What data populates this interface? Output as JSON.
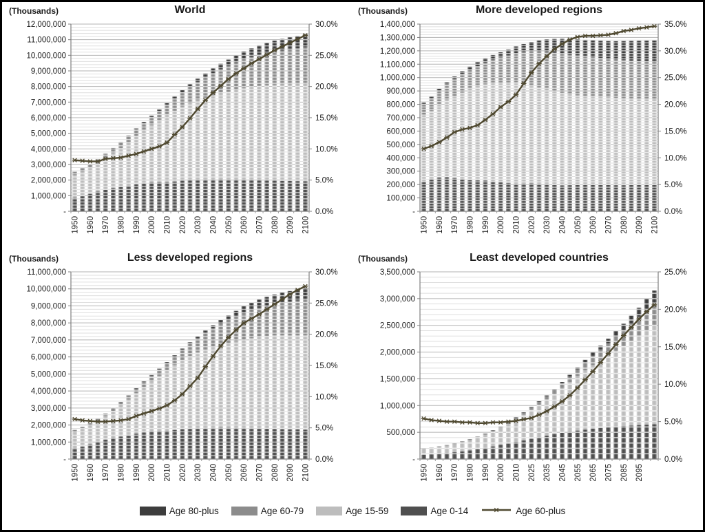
{
  "figure": {
    "units_label": "(Thousands)",
    "series_colors": {
      "age_0_14": "#4f4f4f",
      "age_15_59": "#bdbdbd",
      "age_60_79": "#8c8c8c",
      "age_80_plus": "#3d3d3d",
      "age_60_plus_line": "#4f4930"
    },
    "grid_major_color": "#b3b3b3",
    "grid_minor_color": "#dfdfdf",
    "axis_color": "#7f7f7f"
  },
  "legend": {
    "items": [
      {
        "label": "Age 80-plus",
        "swatch": "bar",
        "color_key": "age_80_plus"
      },
      {
        "label": "Age 60-79",
        "swatch": "bar",
        "color_key": "age_60_79"
      },
      {
        "label": "Age 15-59",
        "swatch": "bar",
        "color_key": "age_15_59"
      },
      {
        "label": "Age 0-14",
        "swatch": "bar",
        "color_key": "age_0_14"
      },
      {
        "label": "Age 60-plus",
        "swatch": "line",
        "color_key": "age_60_plus_line"
      }
    ]
  },
  "chart_data": [
    {
      "id": "world",
      "type": "stacked_bar_with_line",
      "title": "World",
      "units_label": "(Thousands)",
      "left_axis": {
        "max": 12000000,
        "step": 1000000,
        "zero_label": "-"
      },
      "right_axis": {
        "max": 30,
        "step": 5
      },
      "x_tick_labels": [
        "1950",
        "1960",
        "1970",
        "1980",
        "1990",
        "2000",
        "2010",
        "2020",
        "2030",
        "2040",
        "2050",
        "2060",
        "2070",
        "2080",
        "2090",
        "2100"
      ],
      "x_label_positions": [
        0,
        2,
        4,
        6,
        8,
        10,
        12,
        14,
        16,
        18,
        20,
        22,
        24,
        26,
        28,
        30
      ],
      "bars_years_step": "1950-2100 every 5 years (31 bars)",
      "series": {
        "age_0_14": [
          859000,
          965000,
          1117000,
          1262000,
          1381000,
          1490000,
          1558000,
          1621000,
          1726000,
          1784000,
          1850000,
          1858000,
          1857000,
          1911000,
          1963000,
          1995000,
          2006000,
          2006000,
          2024000,
          2042000,
          2033000,
          2024000,
          2016000,
          2007000,
          1999000,
          1980000,
          1967000,
          1951000,
          1943000,
          1934000,
          1922000
        ],
        "age_15_59": [
          1460000,
          1570000,
          1660000,
          1794000,
          1992000,
          2226000,
          2500000,
          2800000,
          3095000,
          3400000,
          3664000,
          3984000,
          4311000,
          4534000,
          4748000,
          4934000,
          5101000,
          5260000,
          5393000,
          5512000,
          5630000,
          5758000,
          5887000,
          5966000,
          6045000,
          6109000,
          6150000,
          6182000,
          6196000,
          6211000,
          6227000
        ],
        "age_60_79": [
          193000,
          207000,
          221000,
          243000,
          282000,
          313000,
          345000,
          388000,
          435000,
          489000,
          542000,
          590000,
          656000,
          778000,
          900000,
          1049000,
          1192000,
          1333000,
          1451000,
          1565000,
          1667000,
          1763000,
          1852000,
          1927000,
          1991000,
          2056000,
          2118000,
          2172000,
          2231000,
          2295000,
          2361000
        ],
        "age_80_plus": [
          14000,
          16000,
          20000,
          23000,
          27000,
          32000,
          37000,
          44000,
          54000,
          62000,
          71000,
          88000,
          106000,
          126000,
          147000,
          164000,
          202000,
          240000,
          289000,
          335000,
          395000,
          445000,
          495000,
          550000,
          605000,
          655000,
          705000,
          745000,
          780000,
          810000,
          840000
        ]
      },
      "line": {
        "name": "Age 60-plus (% of total, right axis)",
        "values": [
          8.2,
          8.1,
          8.0,
          8.0,
          8.4,
          8.5,
          8.6,
          8.9,
          9.2,
          9.6,
          10.0,
          10.4,
          11.0,
          12.3,
          13.5,
          14.9,
          16.4,
          17.8,
          19.0,
          20.1,
          21.2,
          22.1,
          22.9,
          23.7,
          24.4,
          25.1,
          25.8,
          26.4,
          27.0,
          27.6,
          28.2
        ]
      }
    },
    {
      "id": "more-developed-regions",
      "type": "stacked_bar_with_line",
      "title": "More developed regions",
      "units_label": "(Thousands)",
      "left_axis": {
        "max": 1400000,
        "step": 100000,
        "zero_label": "-"
      },
      "right_axis": {
        "max": 35,
        "step": 5
      },
      "x_tick_labels": [
        "1950",
        "1960",
        "1970",
        "1980",
        "1990",
        "2000",
        "2010",
        "2020",
        "2030",
        "2040",
        "2050",
        "2060",
        "2070",
        "2080",
        "2090",
        "2100"
      ],
      "x_label_positions": [
        0,
        2,
        4,
        6,
        8,
        10,
        12,
        14,
        16,
        18,
        20,
        22,
        24,
        26,
        28,
        30
      ],
      "bars_years_step": "1950-2100 every 5 years (31 bars)",
      "series": {
        "age_0_14": [
          222000,
          240000,
          252000,
          255000,
          247000,
          240000,
          233000,
          231000,
          230000,
          222000,
          216000,
          210000,
          204000,
          206000,
          208000,
          204000,
          200000,
          196000,
          194000,
          195000,
          196000,
          197000,
          197000,
          196000,
          196000,
          195000,
          195000,
          196000,
          196000,
          197000,
          197000
        ],
        "age_15_59": [
          496000,
          512000,
          546000,
          579000,
          612000,
          648000,
          681000,
          704000,
          720000,
          734000,
          741000,
          751000,
          760000,
          746000,
          730000,
          721000,
          713000,
          702000,
          692000,
          680000,
          671000,
          664000,
          662000,
          660000,
          657000,
          653000,
          649000,
          646000,
          643000,
          640000,
          638000
        ],
        "age_60_79": [
          86000,
          95000,
          106000,
          119000,
          132000,
          140000,
          145000,
          151000,
          162000,
          177000,
          195000,
          204000,
          216000,
          239000,
          258000,
          270000,
          281000,
          288000,
          291000,
          296000,
          299000,
          299000,
          294000,
          291000,
          288000,
          287000,
          287000,
          285000,
          284000,
          283000,
          282000
        ],
        "age_80_plus": [
          9000,
          10000,
          12000,
          14000,
          17000,
          20000,
          24000,
          29000,
          34000,
          36000,
          37000,
          44000,
          53000,
          60000,
          70000,
          82000,
          92000,
          103000,
          113000,
          118000,
          120000,
          122000,
          125000,
          128000,
          132000,
          137000,
          142000,
          147000,
          152000,
          156000,
          160000
        ]
      },
      "line": {
        "name": "Age 60-plus (% of total, right axis)",
        "values": [
          11.7,
          12.2,
          12.9,
          13.8,
          14.8,
          15.3,
          15.6,
          16.1,
          17.1,
          18.2,
          19.5,
          20.5,
          21.8,
          23.9,
          25.9,
          27.6,
          29.0,
          30.3,
          31.3,
          32.1,
          32.6,
          32.8,
          32.8,
          32.9,
          33.0,
          33.3,
          33.7,
          33.9,
          34.2,
          34.4,
          34.6
        ]
      }
    },
    {
      "id": "less-developed-regions",
      "type": "stacked_bar_with_line",
      "title": "Less developed regions",
      "units_label": "(Thousands)",
      "left_axis": {
        "max": 11000000,
        "step": 1000000,
        "zero_label": "-"
      },
      "right_axis": {
        "max": 30,
        "step": 5
      },
      "x_tick_labels": [
        "1950",
        "1960",
        "1970",
        "1980",
        "1990",
        "2000",
        "2010",
        "2020",
        "2030",
        "2040",
        "2050",
        "2060",
        "2070",
        "2080",
        "2090",
        "2100"
      ],
      "x_label_positions": [
        0,
        2,
        4,
        6,
        8,
        10,
        12,
        14,
        16,
        18,
        20,
        22,
        24,
        26,
        28,
        30
      ],
      "bars_years_step": "1950-2100 every 5 years (31 bars)",
      "series": {
        "age_0_14": [
          637000,
          725000,
          865000,
          1007000,
          1134000,
          1250000,
          1325000,
          1390000,
          1496000,
          1562000,
          1634000,
          1648000,
          1653000,
          1705000,
          1755000,
          1791000,
          1806000,
          1810000,
          1830000,
          1847000,
          1837000,
          1827000,
          1819000,
          1811000,
          1803000,
          1785000,
          1772000,
          1757000,
          1747000,
          1739000,
          1725000
        ],
        "age_15_59": [
          966000,
          1058000,
          1109000,
          1207000,
          1380000,
          1579000,
          1824000,
          2109000,
          2381000,
          2671000,
          2924000,
          3233000,
          3554000,
          3820000,
          4062000,
          4271000,
          4471000,
          4623000,
          4739000,
          4840000,
          4956000,
          5078000,
          5197000,
          5300000,
          5391000,
          5456000,
          5498000,
          5516000,
          5521000,
          5532000,
          5558000
        ],
        "age_60_79": [
          105000,
          112000,
          120000,
          132000,
          150000,
          172000,
          195000,
          224000,
          267000,
          307000,
          346000,
          386000,
          437000,
          507000,
          598000,
          721000,
          828000,
          980000,
          1122000,
          1261000,
          1371000,
          1480000,
          1586000,
          1642000,
          1700000,
          1769000,
          1834000,
          1905000,
          1979000,
          2049000,
          2110000
        ],
        "age_80_plus": [
          5000,
          6000,
          8000,
          9000,
          10000,
          12000,
          13000,
          15000,
          20000,
          26000,
          34000,
          44000,
          53000,
          66000,
          77000,
          82000,
          110000,
          137000,
          176000,
          217000,
          275000,
          323000,
          370000,
          422000,
          473000,
          518000,
          563000,
          598000,
          628000,
          654000,
          680000
        ]
      },
      "line": {
        "name": "Age 60-plus (% of total, right axis)",
        "values": [
          6.4,
          6.2,
          6.1,
          6.0,
          6.0,
          6.1,
          6.2,
          6.4,
          6.9,
          7.3,
          7.7,
          8.1,
          8.6,
          9.4,
          10.4,
          11.7,
          13.0,
          14.8,
          16.5,
          18.1,
          19.5,
          20.7,
          21.8,
          22.5,
          23.2,
          24.0,
          24.8,
          25.6,
          26.4,
          27.1,
          27.7
        ]
      }
    },
    {
      "id": "least-developed-countries",
      "type": "stacked_bar_with_line",
      "title": "Least developed countries",
      "units_label": "(Thousands)",
      "left_axis": {
        "max": 3500000,
        "step": 500000,
        "zero_label": "-"
      },
      "right_axis": {
        "max": 25,
        "step": 5
      },
      "x_tick_labels": [
        "1950",
        "1960",
        "1970",
        "1980",
        "1990",
        "2000",
        "2010",
        "2025",
        "2035",
        "2045",
        "2055",
        "2065",
        "2075",
        "2085",
        "2095"
      ],
      "x_label_positions": [
        0,
        2,
        4,
        6,
        8,
        10,
        12,
        14,
        16,
        18,
        20,
        22,
        24,
        26,
        28
      ],
      "bars_years_step": "31 bars, labels every 2nd bar",
      "series": {
        "age_0_14": [
          78000,
          88000,
          99000,
          112000,
          127000,
          143000,
          162000,
          185000,
          210000,
          237000,
          264000,
          292000,
          320000,
          349000,
          378000,
          408000,
          437000,
          464000,
          490000,
          513000,
          533000,
          551000,
          567000,
          581000,
          594000,
          606000,
          617000,
          627000,
          636000,
          644000,
          650000
        ],
        "age_15_59": [
          107000,
          116000,
          126000,
          138000,
          152000,
          171000,
          192000,
          215000,
          244000,
          277000,
          316000,
          363000,
          420000,
          480000,
          543000,
          608000,
          677000,
          754000,
          839000,
          928000,
          1019000,
          1107000,
          1190000,
          1266000,
          1339000,
          1418000,
          1496000,
          1581000,
          1665000,
          1757000,
          1851000
        ],
        "age_60_79": [
          10000,
          10000,
          11000,
          11000,
          13000,
          14000,
          15000,
          17000,
          20000,
          22000,
          25000,
          29000,
          33000,
          37000,
          43000,
          51000,
          60000,
          72000,
          86000,
          103000,
          125000,
          150000,
          175000,
          202000,
          231000,
          263000,
          295000,
          329000,
          363000,
          398000,
          431000
        ],
        "age_80_plus": [
          1000,
          1200,
          1400,
          1600,
          1900,
          2200,
          2600,
          3000,
          3500,
          4200,
          5000,
          6000,
          7300,
          8800,
          10500,
          13000,
          16000,
          20000,
          25000,
          31000,
          38000,
          47000,
          58000,
          71000,
          86000,
          103000,
          122000,
          143000,
          166000,
          191000,
          218000
        ]
      },
      "line": {
        "name": "Age 60-plus (% of total, right axis)",
        "values": [
          5.4,
          5.2,
          5.1,
          5.0,
          5.0,
          4.9,
          4.9,
          4.8,
          4.8,
          4.9,
          4.9,
          5.0,
          5.1,
          5.3,
          5.5,
          5.9,
          6.4,
          7.0,
          7.7,
          8.5,
          9.5,
          10.6,
          11.7,
          12.9,
          14.1,
          15.3,
          16.5,
          17.6,
          18.7,
          19.7,
          20.6
        ]
      }
    }
  ]
}
